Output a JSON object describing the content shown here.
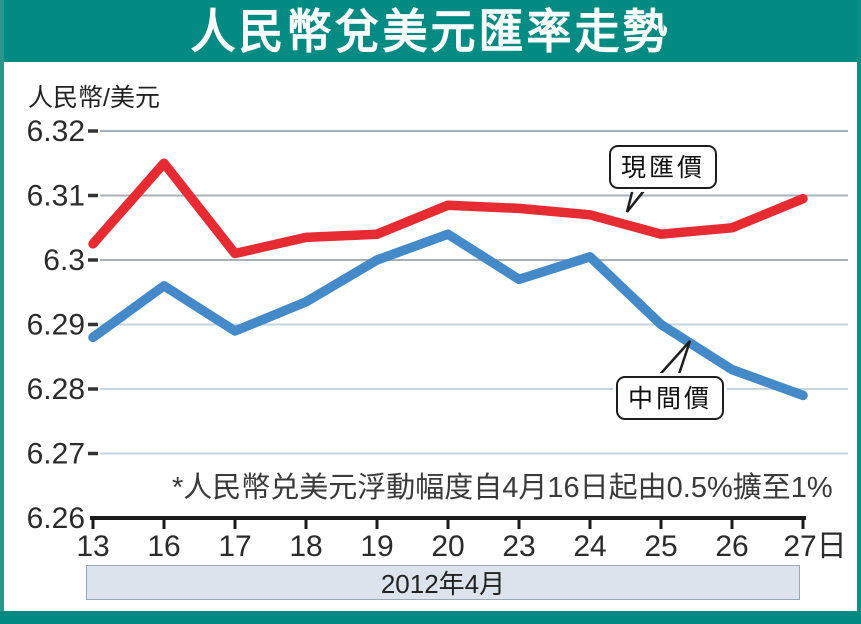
{
  "title": "人民幣兌美元匯率走勢",
  "y_axis_unit_label": "人民幣/美元",
  "footnote": "*人民幣兑美元浮動幅度自4月16日起由0.5%擴至1%",
  "period_label": "2012年4月",
  "colors": {
    "frame_teal": "#028b83",
    "spot_red": "#e62b32",
    "central_blue": "#4489c8",
    "grid_major": "#a7b0b8",
    "grid_minor": "#c6d6e0",
    "axis_black": "#1a1a1a",
    "month_bar_bg": "#dce3ec"
  },
  "chart_data": {
    "type": "line",
    "title": "人民幣兌美元匯率走勢",
    "ylabel": "人民幣/美元",
    "x": [
      "13",
      "16",
      "17",
      "18",
      "19",
      "20",
      "23",
      "24",
      "25",
      "26",
      "27"
    ],
    "x_unit_suffix": "日",
    "series": [
      {
        "name": "現匯價",
        "color": "#e62b32",
        "values": [
          6.3025,
          6.315,
          6.301,
          6.3035,
          6.304,
          6.3085,
          6.308,
          6.307,
          6.304,
          6.305,
          6.3095
        ]
      },
      {
        "name": "中間價",
        "color": "#4489c8",
        "values": [
          6.288,
          6.296,
          6.289,
          6.2935,
          6.3,
          6.304,
          6.297,
          6.3005,
          6.29,
          6.283,
          6.279
        ]
      }
    ],
    "ylim": [
      6.26,
      6.32
    ],
    "ytick_labels": [
      "6.32",
      "6.31",
      "6.3",
      "6.29",
      "6.28",
      "6.27",
      "6.26"
    ],
    "grid": true,
    "legend_position": "callouts-on-plot",
    "annotation": "*人民幣兑美元浮動幅度自4月16日起由0.5%擴至1%",
    "period": "2012年4月"
  }
}
